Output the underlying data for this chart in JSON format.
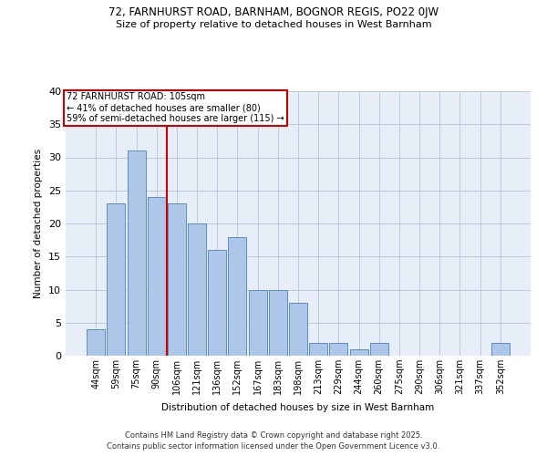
{
  "title1": "72, FARNHURST ROAD, BARNHAM, BOGNOR REGIS, PO22 0JW",
  "title2": "Size of property relative to detached houses in West Barnham",
  "xlabel": "Distribution of detached houses by size in West Barnham",
  "ylabel": "Number of detached properties",
  "categories": [
    "44sqm",
    "59sqm",
    "75sqm",
    "90sqm",
    "106sqm",
    "121sqm",
    "136sqm",
    "152sqm",
    "167sqm",
    "183sqm",
    "198sqm",
    "213sqm",
    "229sqm",
    "244sqm",
    "260sqm",
    "275sqm",
    "290sqm",
    "306sqm",
    "321sqm",
    "337sqm",
    "352sqm"
  ],
  "values": [
    4,
    23,
    31,
    24,
    23,
    20,
    16,
    18,
    10,
    10,
    8,
    2,
    2,
    1,
    2,
    0,
    0,
    0,
    0,
    0,
    2
  ],
  "bar_color": "#aec6e8",
  "bar_edge_color": "#5a8fc0",
  "property_line_color": "#cc0000",
  "property_line_x": 3.5,
  "annotation_line1": "72 FARNHURST ROAD: 105sqm",
  "annotation_line2": "← 41% of detached houses are smaller (80)",
  "annotation_line3": "59% of semi-detached houses are larger (115) →",
  "annotation_box_color": "#cc0000",
  "ylim": [
    0,
    40
  ],
  "yticks": [
    0,
    5,
    10,
    15,
    20,
    25,
    30,
    35,
    40
  ],
  "grid_color": "#c0c8d8",
  "background_color": "#e8eef8",
  "footer1": "Contains HM Land Registry data © Crown copyright and database right 2025.",
  "footer2": "Contains public sector information licensed under the Open Government Licence v3.0."
}
